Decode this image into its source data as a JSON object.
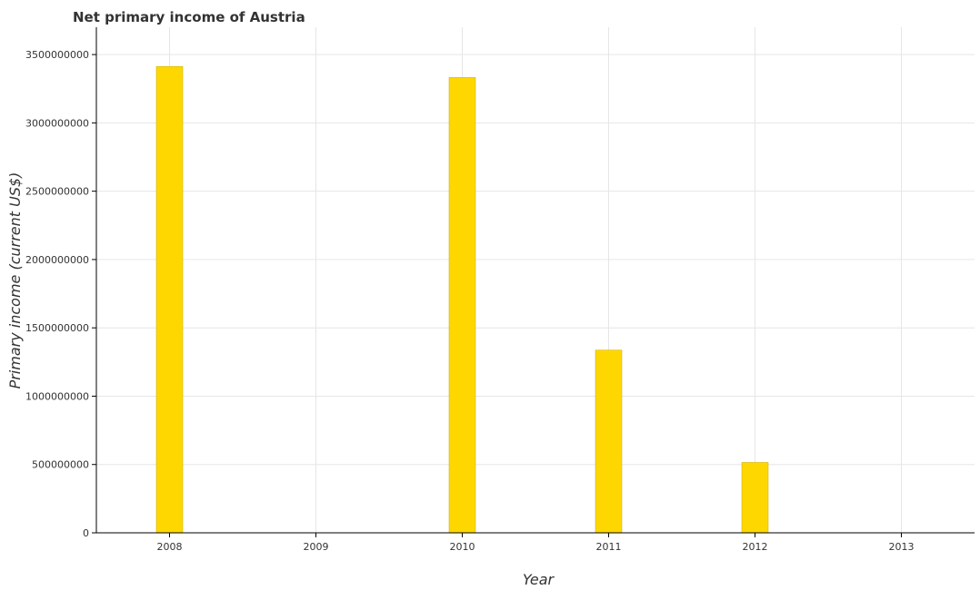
{
  "chart_data": {
    "type": "bar",
    "title": "Net primary income of Austria",
    "xlabel": "Year",
    "ylabel": "Primary income (current US$)",
    "categories": [
      "2008",
      "2009",
      "2010",
      "2011",
      "2012",
      "2013"
    ],
    "values": [
      3413000000,
      0,
      3332000000,
      1337000000,
      515000000,
      0
    ],
    "ylim": [
      0,
      3700000000
    ],
    "yticks": [
      0,
      500000000,
      1000000000,
      1500000000,
      2000000000,
      2500000000,
      3000000000,
      3500000000
    ],
    "ytick_labels": [
      "0",
      "500000000",
      "1000000000",
      "1500000000",
      "2000000000",
      "2500000000",
      "3000000000",
      "3500000000"
    ],
    "grid": true,
    "colors": {
      "bar_fill": "#ffd700",
      "bar_stroke": "#c8a800",
      "grid": "#e6e6e6",
      "axis": "#000000",
      "text": "#333333"
    }
  }
}
